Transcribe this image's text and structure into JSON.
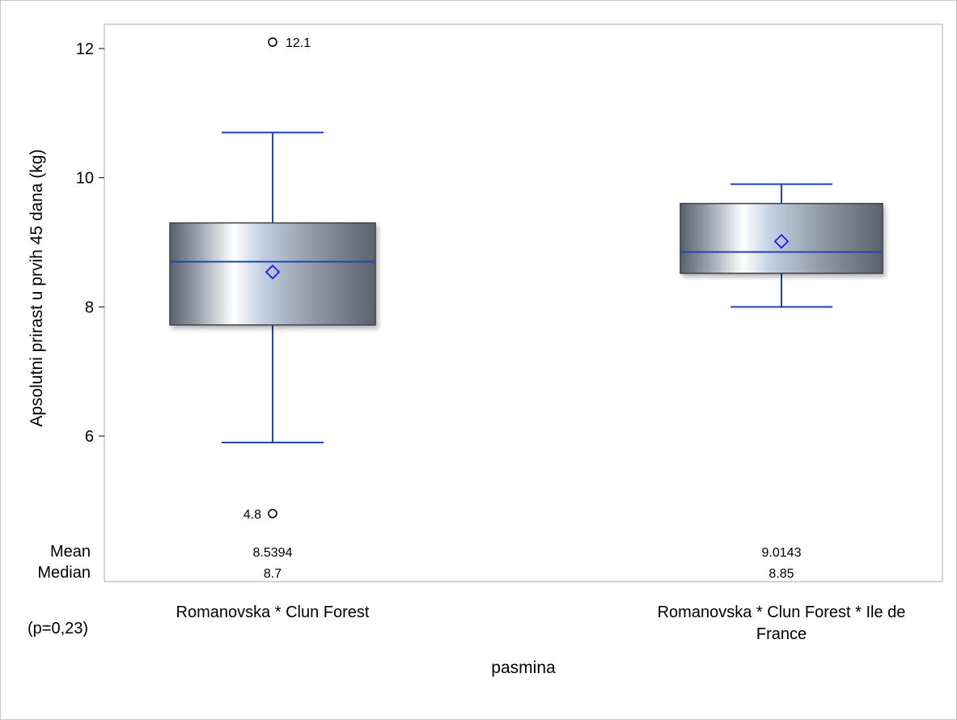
{
  "chart_data": {
    "type": "box",
    "title": "",
    "xlabel": "pasmina",
    "ylabel": "Apsolutni prirast u prvih 45 dana (kg)",
    "ylim": [
      4.4,
      12.5
    ],
    "yticks": [
      6,
      8,
      10,
      12
    ],
    "grid": false,
    "legend": "none",
    "categories": [
      [
        "Romanovska * Clun Forest"
      ],
      [
        "Romanovska * Clun Forest * Ile de",
        "France"
      ]
    ],
    "boxes": [
      {
        "whisker_low": 5.9,
        "q1": 7.72,
        "median": 8.7,
        "q3": 9.3,
        "whisker_high": 10.7,
        "mean": 8.5394,
        "outliers": [
          {
            "value": 12.1,
            "label": "12.1"
          },
          {
            "value": 4.8,
            "label": "4.8"
          }
        ]
      },
      {
        "whisker_low": 8.0,
        "q1": 8.52,
        "median": 8.85,
        "q3": 9.6,
        "whisker_high": 9.9,
        "mean": 9.0143,
        "outliers": []
      }
    ],
    "stats_table": {
      "row_labels": [
        "Mean",
        "Median"
      ],
      "values": [
        [
          "8.5394",
          "9.0143"
        ],
        [
          "8.7",
          "8.85"
        ]
      ]
    },
    "colors": {
      "line": "#1f45b4",
      "mean_marker": "#1a1aff",
      "box_dark": "#5c636d",
      "box_light": "#ffffff"
    }
  },
  "footnote": "(p=0,23)"
}
